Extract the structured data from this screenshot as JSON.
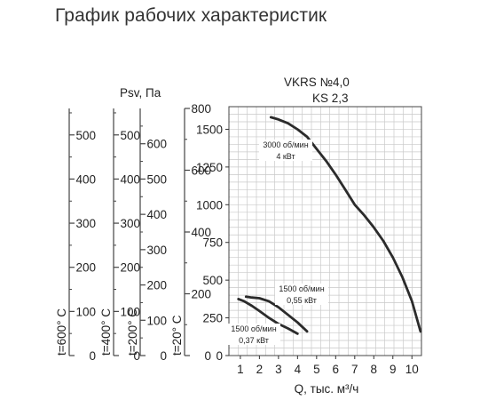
{
  "page_title": "График рабочих характеристик",
  "chart_data": {
    "type": "line",
    "title": "VKRS №4,0",
    "subtitle": "KS 2,3",
    "xlabel": "Q, тыс. м³/ч",
    "ylabel": "Psv, Па",
    "xlim": [
      0.4,
      10.5
    ],
    "x_ticks": [
      "1",
      "2",
      "3",
      "4",
      "5",
      "6",
      "7",
      "8",
      "9",
      "10"
    ],
    "ylim": [
      0,
      1650
    ],
    "y_ticks": [
      "0",
      "250",
      "500",
      "750",
      "1000",
      "1250",
      "1500"
    ],
    "grid": true,
    "extra_axes": [
      {
        "label": "t=20° C",
        "max": 800,
        "ticks": [
          "0",
          "200",
          "400",
          "600",
          "800"
        ]
      },
      {
        "label": "t=200° C",
        "max": 700,
        "ticks": [
          "0",
          "100",
          "200",
          "300",
          "400",
          "500",
          "600"
        ]
      },
      {
        "label": "t=400° C",
        "max": 560,
        "ticks": [
          "0",
          "100",
          "200",
          "300",
          "400",
          "500"
        ]
      },
      {
        "label": "t=600° C",
        "max": 560,
        "ticks": [
          "0",
          "100",
          "200",
          "300",
          "400",
          "500"
        ]
      }
    ],
    "series": [
      {
        "x": [
          2.6,
          3.0,
          3.5,
          4.0,
          4.5,
          5.0,
          5.5,
          6.0,
          6.5,
          7.0,
          7.5,
          8.0,
          8.5,
          9.0,
          9.5,
          10.0,
          10.45
        ],
        "values": [
          1580,
          1565,
          1540,
          1500,
          1450,
          1370,
          1290,
          1200,
          1100,
          1000,
          930,
          850,
          760,
          650,
          520,
          360,
          160
        ]
      },
      {
        "x": [
          1.3,
          1.6,
          2.0,
          2.5,
          3.0,
          3.5,
          4.0,
          4.5
        ],
        "values": [
          390,
          385,
          380,
          360,
          320,
          270,
          220,
          160
        ]
      },
      {
        "x": [
          0.9,
          1.2,
          1.6,
          2.0,
          2.5,
          3.0,
          3.5,
          4.0
        ],
        "values": [
          375,
          360,
          330,
          295,
          250,
          210,
          180,
          145
        ]
      }
    ],
    "annotations": [
      {
        "line1": "3000 об/мин",
        "line2": "4 кВт"
      },
      {
        "line1": "1500 об/мин",
        "line2": "0,55 кВт"
      },
      {
        "line1": "1500 об/мин",
        "line2": "0,37 кВт"
      }
    ]
  }
}
